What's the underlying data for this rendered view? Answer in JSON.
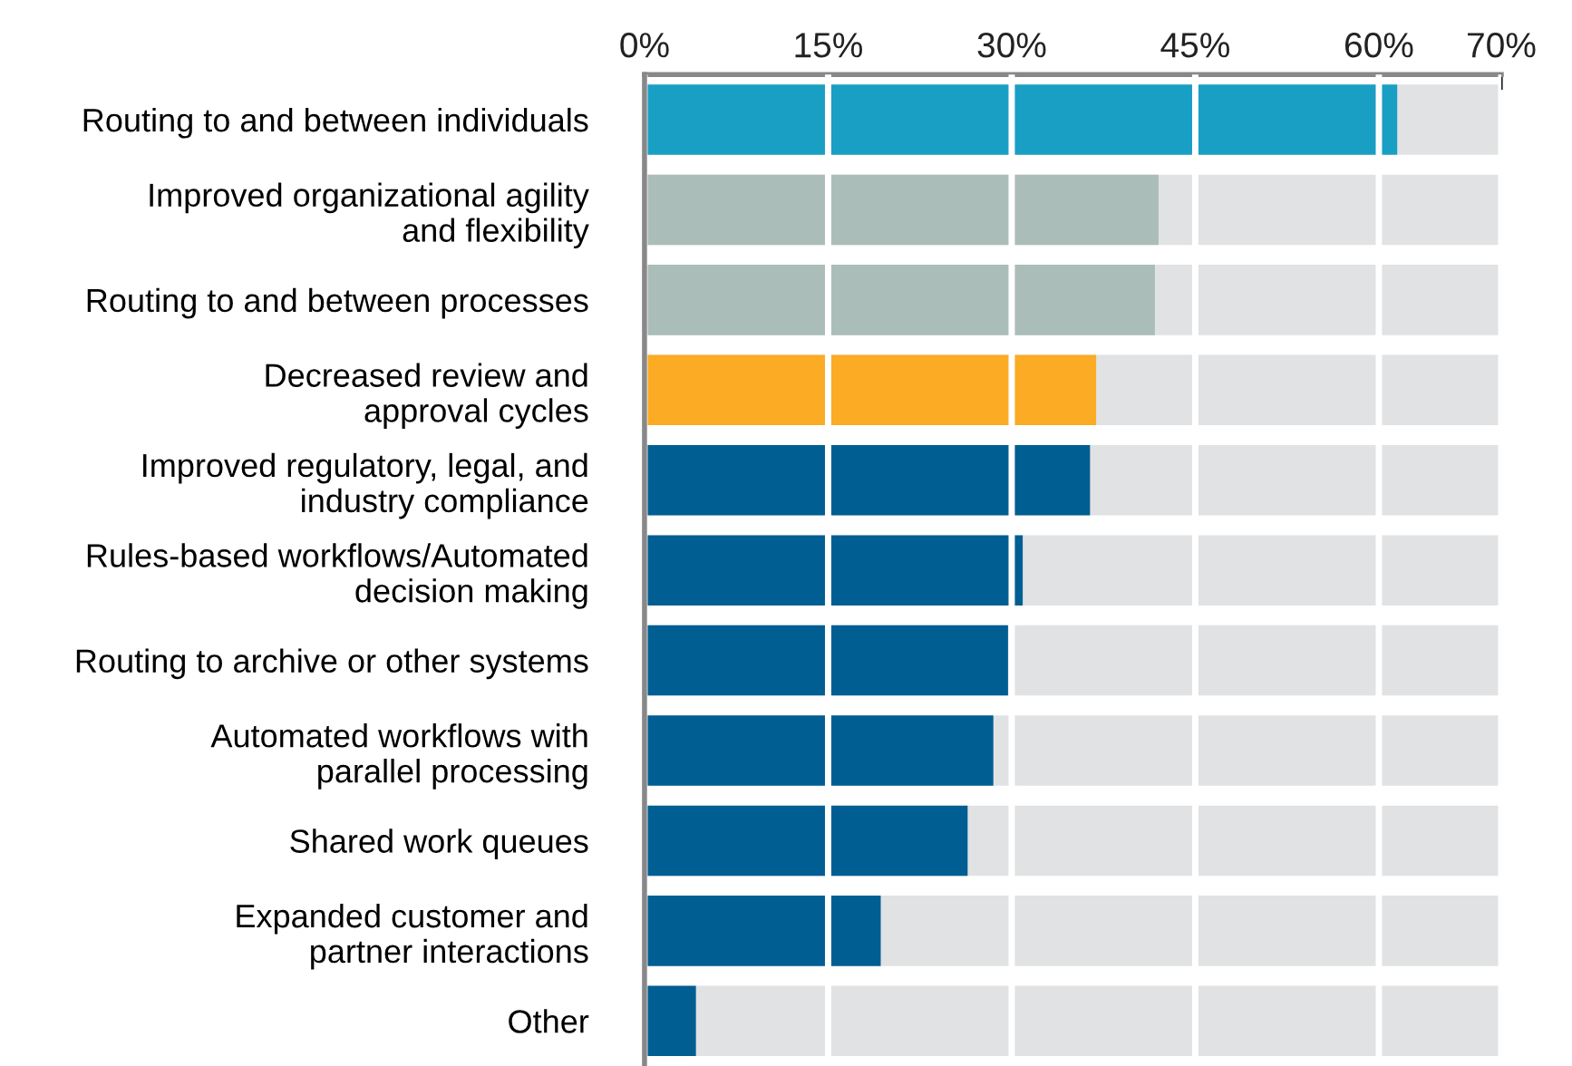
{
  "chart_data": {
    "type": "bar",
    "orientation": "horizontal",
    "categories": [
      "Routing to and between individuals",
      "Improved organizational agility\nand flexibility",
      "Routing to and between processes",
      "Decreased review and\napproval cycles",
      "Improved regulatory, legal, and\nindustry compliance",
      "Rules-based workflows/Automated\ndecision making",
      "Routing to archive or other systems",
      "Automated workflows with\nparallel processing",
      "Shared work queues",
      "Expanded customer and\npartner interactions",
      "Other"
    ],
    "values": [
      61.5,
      42.0,
      41.7,
      36.9,
      36.4,
      30.9,
      29.7,
      28.5,
      26.4,
      19.3,
      4.2
    ],
    "colors": [
      "#1a9fc4",
      "#abbdb9",
      "#abbdb9",
      "#fbab24",
      "#005e93",
      "#005e93",
      "#005e93",
      "#005e93",
      "#005e93",
      "#005e93",
      "#005e93"
    ],
    "xlim": [
      0,
      70
    ],
    "xticks": [
      {
        "value": 0,
        "label": "0%"
      },
      {
        "value": 15,
        "label": "15%"
      },
      {
        "value": 30,
        "label": "30%"
      },
      {
        "value": 45,
        "label": "45%"
      },
      {
        "value": 60,
        "label": "60%"
      },
      {
        "value": 70,
        "label": "70%"
      }
    ],
    "bands": [
      {
        "axis": "x",
        "from": 0,
        "to": 70,
        "color": "#e1e2e4"
      }
    ],
    "grid": "x"
  }
}
